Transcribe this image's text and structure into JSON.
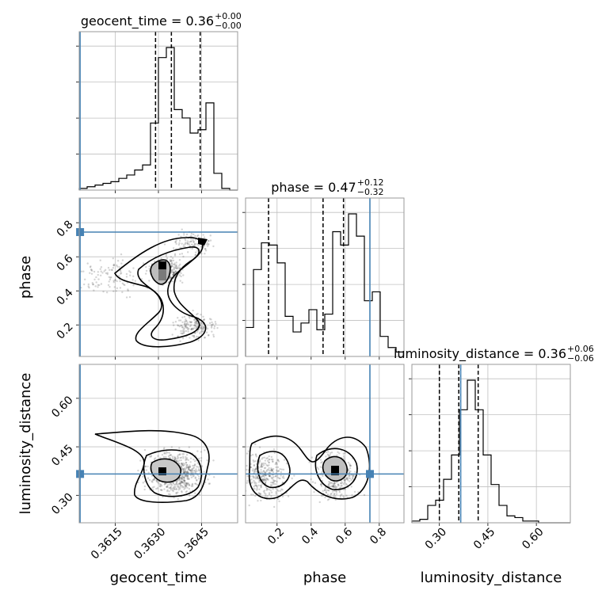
{
  "chart_data": {
    "type": "corner",
    "parameters": [
      "geocent_time",
      "phase",
      "luminosity_distance"
    ],
    "titles": [
      {
        "name": "geocent_time",
        "value": "0.36",
        "upper": "+0.00",
        "lower": "−0.00"
      },
      {
        "name": "phase",
        "value": "0.47",
        "upper": "+0.12",
        "lower": "−0.32"
      },
      {
        "name": "luminosity_distance",
        "value": "0.36",
        "upper": "+0.06",
        "lower": "−0.06"
      }
    ],
    "axis_labels": [
      "geocent_time",
      "phase",
      "luminosity_distance"
    ],
    "ranges": [
      [
        0.36025,
        0.36575
      ],
      [
        0.015,
        0.945
      ],
      [
        0.215,
        0.705
      ]
    ],
    "ticks": {
      "geocent_time": {
        "values": [
          0.3615,
          0.363,
          0.3645
        ],
        "labels": [
          "0.3615",
          "0.3630",
          "0.3645"
        ]
      },
      "phase": {
        "values": [
          0.2,
          0.4,
          0.6,
          0.8
        ],
        "labels": [
          "0.2",
          "0.4",
          "0.6",
          "0.8"
        ]
      },
      "luminosity_distance": {
        "values": [
          0.3,
          0.45,
          0.6
        ],
        "labels": [
          "0.30",
          "0.45",
          "0.60"
        ]
      }
    },
    "truths": [
      0.36028,
      0.745,
      0.366
    ],
    "quantiles": [
      [
        0.3629,
        0.36345,
        0.36445
      ],
      [
        0.15,
        0.47,
        0.59
      ],
      [
        0.3,
        0.36,
        0.42
      ]
    ],
    "histograms": [
      {
        "parameter": "geocent_time",
        "bins": [
          0.36025,
          0.36575
        ],
        "counts": [
          1,
          2,
          3,
          4,
          5,
          7,
          9,
          12,
          15,
          40,
          79,
          85,
          48,
          43,
          34,
          36,
          52,
          10,
          1,
          0
        ]
      },
      {
        "parameter": "phase",
        "bins": [
          0.015,
          0.945
        ],
        "counts": [
          13,
          39,
          51,
          50,
          42,
          18,
          11,
          15,
          21,
          12,
          19,
          56,
          50,
          64,
          54,
          25,
          29,
          9,
          4,
          2
        ]
      },
      {
        "parameter": "luminosity_distance",
        "bins": [
          0.215,
          0.705
        ],
        "counts": [
          1,
          2,
          10,
          13,
          25,
          39,
          65,
          82,
          65,
          39,
          22,
          10,
          4,
          3,
          1,
          1,
          0,
          0,
          0,
          0
        ]
      }
    ],
    "grid": true,
    "colors": {
      "truth": "#4682b4",
      "contour": "#000000",
      "grid": "#c0c0c0",
      "scatter": "#555555",
      "axes": "#9a9a9a"
    }
  }
}
